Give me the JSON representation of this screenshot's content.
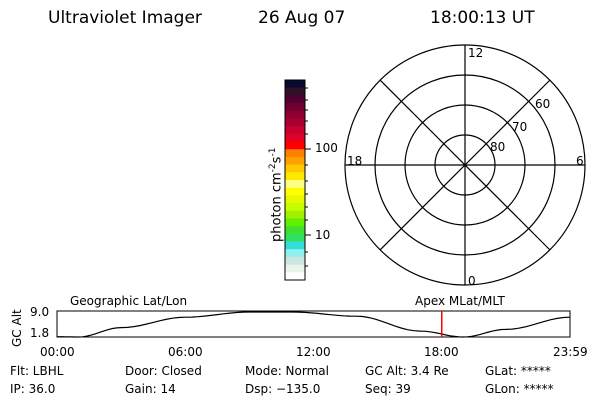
{
  "header": {
    "instrument": "Ultraviolet Imager",
    "date": "26 Aug 07",
    "time": "18:00:13 UT"
  },
  "colorbar": {
    "label": "photon cm",
    "label_exp1": "-2",
    "label_mid": "s",
    "label_exp2": "-1",
    "ticks": [
      "100",
      "10"
    ],
    "colors": [
      "#0a0a30",
      "#301028",
      "#500030",
      "#700030",
      "#900030",
      "#a80030",
      "#c80030",
      "#e00028",
      "#ff0000",
      "#ff8000",
      "#ffa000",
      "#ffc800",
      "#ffe800",
      "#ffff88",
      "#ffff00",
      "#e8f800",
      "#c8ff00",
      "#a0f000",
      "#60f000",
      "#40e030",
      "#30e060",
      "#30e0d8",
      "#90f0f0",
      "#d0e4e0",
      "#e8f4ec",
      "#ffffff"
    ]
  },
  "polar": {
    "mlt_labels": {
      "top": "12",
      "bottom": "0",
      "left": "18",
      "right": "6"
    },
    "lat_labels": [
      "60",
      "70",
      "80"
    ]
  },
  "timeline": {
    "left_title": "Geographic Lat/Lon",
    "right_title": "Apex MLat/MLT",
    "ylabel": "GC Alt",
    "yticks": [
      "9.0",
      "1.8"
    ],
    "ylim": [
      1.8,
      9.0
    ],
    "xticks": [
      "00:00",
      "06:00",
      "12:00",
      "18:00",
      "23:59"
    ],
    "current_time_hours": 18.0,
    "marker_color": "#ff0000",
    "altitude_series": {
      "hours": [
        0,
        1,
        3,
        6,
        9,
        11,
        14,
        17,
        19,
        21,
        24
      ],
      "values": [
        1.9,
        1.8,
        4.5,
        7.5,
        9.0,
        9.0,
        7.8,
        3.5,
        1.8,
        4.0,
        7.5
      ]
    }
  },
  "status": {
    "flt": "Flt: LBHL",
    "ip": "IP: 36.0",
    "door": "Door: Closed",
    "gain": "Gain: 14",
    "mode": "Mode: Normal",
    "dsp": "Dsp: −135.0",
    "gcalt": "GC Alt: 3.4 Re",
    "seq": "Seq: 39",
    "glat": "GLat: *****",
    "glon": "GLon: *****"
  }
}
